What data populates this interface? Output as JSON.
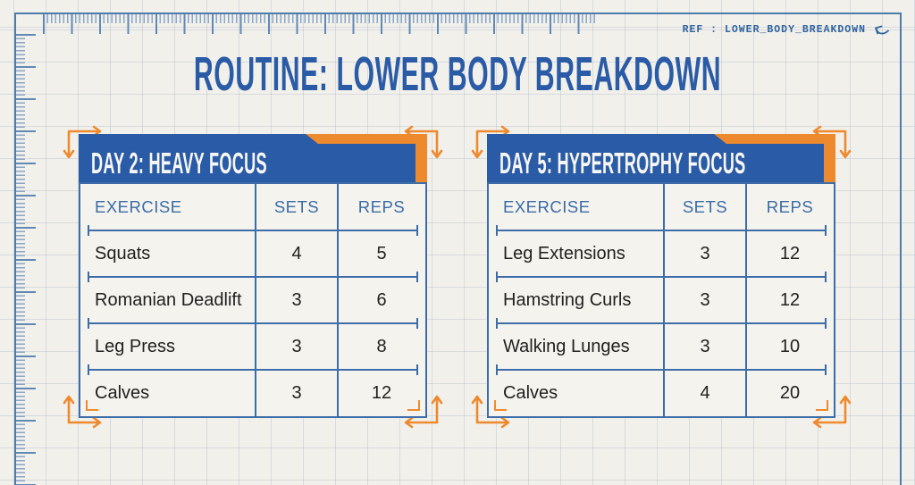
{
  "page": {
    "title": "ROUTINE: LOWER BODY BREAKDOWN",
    "ref_label": "REF : LOWER_BODY_BREAKDOWN"
  },
  "colors": {
    "accent_blue": "#2a5ba6",
    "accent_orange": "#ee8a2e",
    "paper": "#f2f0ea",
    "line_blue": "#3d6da9"
  },
  "icons": {
    "ref_arrow": "undo-curved-arrow",
    "corner_arrow": "corner-double-arrow",
    "corner_bracket": "l-corner-bracket"
  },
  "tables": [
    {
      "title": "DAY 2: HEAVY FOCUS",
      "columns": [
        "EXERCISE",
        "SETS",
        "REPS"
      ],
      "rows": [
        {
          "exercise": "Squats",
          "sets": "4",
          "reps": "5"
        },
        {
          "exercise": "Romanian Deadlift",
          "sets": "3",
          "reps": "6"
        },
        {
          "exercise": "Leg Press",
          "sets": "3",
          "reps": "8"
        },
        {
          "exercise": "Calves",
          "sets": "3",
          "reps": "12"
        }
      ]
    },
    {
      "title": "DAY 5: HYPERTROPHY FOCUS",
      "columns": [
        "EXERCISE",
        "SETS",
        "REPS"
      ],
      "rows": [
        {
          "exercise": "Leg Extensions",
          "sets": "3",
          "reps": "12"
        },
        {
          "exercise": "Hamstring Curls",
          "sets": "3",
          "reps": "12"
        },
        {
          "exercise": "Walking Lunges",
          "sets": "3",
          "reps": "10"
        },
        {
          "exercise": "Calves",
          "sets": "4",
          "reps": "20"
        }
      ]
    }
  ]
}
